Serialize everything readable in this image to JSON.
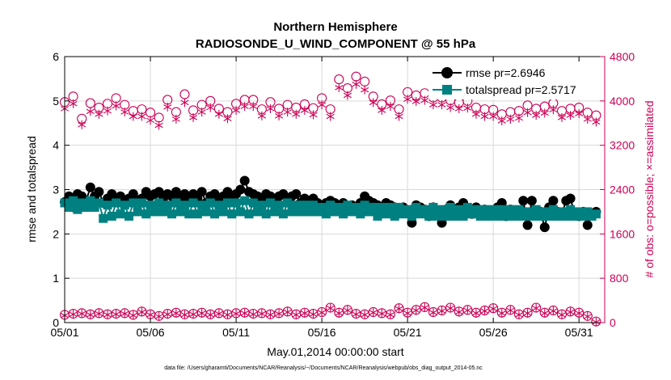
{
  "chart_data": {
    "type": "line",
    "title": "Northern Hemisphere",
    "subtitle": "RADIOSONDE_U_WIND_COMPONENT @ 55 hPa",
    "xlabel": "May.01,2014 00:00:00 start",
    "ylabel": "rmse and totalspread",
    "y2label": "# of obs: o=possible; ×=assimilated",
    "xlim": [
      0,
      31.5
    ],
    "ylim": [
      0,
      6
    ],
    "y2lim": [
      0,
      4800
    ],
    "x_ticks": [
      0,
      5,
      10,
      15,
      20,
      25,
      30
    ],
    "x_tick_labels": [
      "05/01",
      "05/06",
      "05/11",
      "05/16",
      "05/21",
      "05/26",
      "05/31"
    ],
    "y_ticks": [
      0,
      1,
      2,
      3,
      4,
      5,
      6
    ],
    "y_tick_labels": [
      "0",
      "1",
      "2",
      "3",
      "4",
      "5",
      "6"
    ],
    "y2_ticks": [
      0,
      800,
      1600,
      2400,
      3200,
      4000,
      4800
    ],
    "y2_tick_labels": [
      "0",
      "800",
      "1600",
      "2400",
      "3200",
      "4000",
      "4800"
    ],
    "legend_position": "top-right",
    "colors": {
      "rmse": "#000000",
      "spread": "#008080",
      "obs": "#cc0055"
    },
    "series": [
      {
        "name": "rmse pr=2.6946",
        "axis": "left",
        "marker": "filled-circle",
        "x": [
          0,
          0.25,
          0.5,
          0.75,
          1,
          1.25,
          1.5,
          1.75,
          2,
          2.25,
          2.5,
          2.75,
          3,
          3.25,
          3.5,
          3.75,
          4,
          4.25,
          4.5,
          4.75,
          5,
          5.25,
          5.5,
          5.75,
          6,
          6.25,
          6.5,
          6.75,
          7,
          7.25,
          7.5,
          7.75,
          8,
          8.25,
          8.5,
          8.75,
          9,
          9.25,
          9.5,
          9.75,
          10,
          10.25,
          10.5,
          10.75,
          11,
          11.25,
          11.5,
          11.75,
          12,
          12.25,
          12.5,
          12.75,
          13,
          13.25,
          13.5,
          13.75,
          14,
          14.25,
          14.5,
          14.75,
          15,
          15.25,
          15.5,
          15.75,
          16,
          16.25,
          16.5,
          16.75,
          17,
          17.25,
          17.5,
          17.75,
          18,
          18.25,
          18.5,
          18.75,
          19,
          19.25,
          19.5,
          19.75,
          20,
          20.25,
          20.5,
          20.75,
          21,
          21.25,
          21.5,
          21.75,
          22,
          22.25,
          22.5,
          22.75,
          23,
          23.25,
          23.5,
          23.75,
          24,
          24.25,
          24.5,
          24.75,
          25,
          25.25,
          25.5,
          25.75,
          26,
          26.25,
          26.5,
          26.75,
          27,
          27.25,
          27.5,
          27.75,
          28,
          28.25,
          28.5,
          28.75,
          29,
          29.25,
          29.5,
          29.75,
          30,
          30.25,
          30.5,
          30.75,
          31
        ],
        "values": [
          2.72,
          2.85,
          2.6,
          2.9,
          2.85,
          2.75,
          3.05,
          2.85,
          2.95,
          2.7,
          2.8,
          2.9,
          2.75,
          2.85,
          2.7,
          2.8,
          2.9,
          2.75,
          2.8,
          2.95,
          2.85,
          2.9,
          2.95,
          2.8,
          2.9,
          2.85,
          2.95,
          2.8,
          2.9,
          2.75,
          2.9,
          2.8,
          2.95,
          2.7,
          2.85,
          2.9,
          2.8,
          2.85,
          2.95,
          2.8,
          2.9,
          3.0,
          3.2,
          2.95,
          2.9,
          2.85,
          2.8,
          2.9,
          2.85,
          2.8,
          2.85,
          2.9,
          2.8,
          2.85,
          2.9,
          2.7,
          2.8,
          2.75,
          2.8,
          2.7,
          2.65,
          2.7,
          2.75,
          2.7,
          2.65,
          2.7,
          2.6,
          2.65,
          2.55,
          2.7,
          2.85,
          2.75,
          2.7,
          2.65,
          2.6,
          2.7,
          2.65,
          2.6,
          2.55,
          2.6,
          2.5,
          2.25,
          2.65,
          2.6,
          2.55,
          2.4,
          2.6,
          2.5,
          2.25,
          2.55,
          2.65,
          2.5,
          2.6,
          2.7,
          2.55,
          2.45,
          2.6,
          2.5,
          2.55,
          2.45,
          2.5,
          2.6,
          2.7,
          2.4,
          2.55,
          2.5,
          2.45,
          2.75,
          2.2,
          2.75,
          2.45,
          2.5,
          2.15,
          2.6,
          2.75,
          2.5,
          2.45,
          2.75,
          2.8,
          2.45,
          2.4,
          2.5,
          2.2,
          2.45,
          2.5
        ]
      },
      {
        "name": "totalspread pr=2.5717",
        "axis": "left",
        "marker": "filled-square",
        "x": [
          0,
          0.25,
          0.5,
          0.75,
          1,
          1.25,
          1.5,
          1.75,
          2,
          2.25,
          2.5,
          2.75,
          3,
          3.25,
          3.5,
          3.75,
          4,
          4.25,
          4.5,
          4.75,
          5,
          5.25,
          5.5,
          5.75,
          6,
          6.25,
          6.5,
          6.75,
          7,
          7.25,
          7.5,
          7.75,
          8,
          8.25,
          8.5,
          8.75,
          9,
          9.25,
          9.5,
          9.75,
          10,
          10.25,
          10.5,
          10.75,
          11,
          11.25,
          11.5,
          11.75,
          12,
          12.25,
          12.5,
          12.75,
          13,
          13.25,
          13.5,
          13.75,
          14,
          14.25,
          14.5,
          14.75,
          15,
          15.25,
          15.5,
          15.75,
          16,
          16.25,
          16.5,
          16.75,
          17,
          17.25,
          17.5,
          17.75,
          18,
          18.25,
          18.5,
          18.75,
          19,
          19.25,
          19.5,
          19.75,
          20,
          20.25,
          20.5,
          20.75,
          21,
          21.25,
          21.5,
          21.75,
          22,
          22.25,
          22.5,
          22.75,
          23,
          23.25,
          23.5,
          23.75,
          24,
          24.25,
          24.5,
          24.75,
          25,
          25.25,
          25.5,
          25.75,
          26,
          26.25,
          26.5,
          26.75,
          27,
          27.25,
          27.5,
          27.75,
          28,
          28.25,
          28.5,
          28.75,
          29,
          29.25,
          29.5,
          29.75,
          30,
          30.25,
          30.5,
          30.75,
          31
        ],
        "values": [
          2.7,
          2.6,
          2.75,
          2.55,
          2.7,
          2.6,
          2.75,
          2.6,
          2.7,
          2.35,
          2.65,
          2.4,
          2.7,
          2.45,
          2.65,
          2.4,
          2.7,
          2.5,
          2.7,
          2.45,
          2.65,
          2.5,
          2.7,
          2.5,
          2.65,
          2.45,
          2.7,
          2.5,
          2.65,
          2.45,
          2.7,
          2.45,
          2.65,
          2.5,
          2.7,
          2.45,
          2.65,
          2.5,
          2.7,
          2.45,
          2.7,
          2.5,
          2.75,
          2.45,
          2.7,
          2.5,
          2.65,
          2.45,
          2.7,
          2.5,
          2.65,
          2.45,
          2.7,
          2.5,
          2.65,
          2.5,
          2.65,
          2.5,
          2.65,
          2.5,
          2.6,
          2.45,
          2.65,
          2.5,
          2.6,
          2.45,
          2.65,
          2.5,
          2.6,
          2.45,
          2.65,
          2.5,
          2.6,
          2.4,
          2.6,
          2.45,
          2.6,
          2.4,
          2.6,
          2.45,
          2.55,
          2.4,
          2.6,
          2.45,
          2.55,
          2.4,
          2.6,
          2.4,
          2.55,
          2.4,
          2.6,
          2.4,
          2.55,
          2.4,
          2.6,
          2.45,
          2.55,
          2.4,
          2.55,
          2.4,
          2.55,
          2.4,
          2.55,
          2.4,
          2.55,
          2.4,
          2.55,
          2.4,
          2.5,
          2.4,
          2.55,
          2.4,
          2.5,
          2.4,
          2.55,
          2.4,
          2.5,
          2.4,
          2.55,
          2.4,
          2.5,
          2.4,
          2.5,
          2.4,
          2.45
        ]
      },
      {
        "name": "# of obs possible",
        "axis": "right",
        "marker": "open-circle",
        "x": [
          0,
          0.5,
          1,
          1.5,
          2,
          2.5,
          3,
          3.5,
          4,
          4.5,
          5,
          5.5,
          6,
          6.5,
          7,
          7.5,
          8,
          8.5,
          9,
          9.5,
          10,
          10.5,
          11,
          11.5,
          12,
          12.5,
          13,
          13.5,
          14,
          14.5,
          15,
          15.5,
          16,
          16.5,
          17,
          17.5,
          18,
          18.5,
          19,
          19.5,
          20,
          20.5,
          21,
          21.5,
          22,
          22.5,
          23,
          23.5,
          24,
          24.5,
          25,
          25.5,
          26,
          26.5,
          27,
          27.5,
          28,
          28.5,
          29,
          29.5,
          30,
          30.5,
          31
        ],
        "values": [
          3980,
          4080,
          3680,
          3960,
          3880,
          3950,
          4050,
          3930,
          3820,
          3850,
          3790,
          3700,
          4020,
          3800,
          4120,
          3830,
          3930,
          4000,
          3860,
          3800,
          3950,
          4020,
          4020,
          3850,
          3980,
          3860,
          3930,
          3880,
          3940,
          3870,
          4050,
          3850,
          4390,
          4230,
          4440,
          4350,
          4080,
          3940,
          4010,
          3850,
          4160,
          4100,
          4140,
          4060,
          4060,
          4010,
          3970,
          4000,
          3880,
          3850,
          3840,
          3760,
          3800,
          3820,
          3920,
          3860,
          3900,
          3960,
          3820,
          3860,
          3880,
          3790,
          3740
        ]
      },
      {
        "name": "# of obs assimilated",
        "axis": "right",
        "marker": "asterisk",
        "x": [
          0,
          0.5,
          1,
          1.5,
          2,
          2.5,
          3,
          3.5,
          4,
          4.5,
          5,
          5.5,
          6,
          6.5,
          7,
          7.5,
          8,
          8.5,
          9,
          9.5,
          10,
          10.5,
          11,
          11.5,
          12,
          12.5,
          13,
          13.5,
          14,
          14.5,
          15,
          15.5,
          16,
          16.5,
          17,
          17.5,
          18,
          18.5,
          19,
          19.5,
          20,
          20.5,
          21,
          21.5,
          22,
          22.5,
          23,
          23.5,
          24,
          24.5,
          25,
          25.5,
          26,
          26.5,
          27,
          27.5,
          28,
          28.5,
          29,
          29.5,
          30,
          30.5,
          31
        ],
        "values": [
          3860,
          3950,
          3570,
          3810,
          3760,
          3820,
          3910,
          3800,
          3720,
          3720,
          3650,
          3560,
          3890,
          3670,
          3970,
          3700,
          3800,
          3880,
          3760,
          3680,
          3830,
          3900,
          3900,
          3730,
          3860,
          3730,
          3800,
          3760,
          3830,
          3750,
          3930,
          3720,
          4240,
          4100,
          4300,
          4200,
          3970,
          3830,
          3900,
          3720,
          4030,
          3990,
          4010,
          3930,
          3930,
          3880,
          3860,
          3870,
          3760,
          3720,
          3720,
          3640,
          3670,
          3690,
          3790,
          3740,
          3780,
          3840,
          3700,
          3740,
          3770,
          3670,
          3620
        ]
      },
      {
        "name": "# of obs possible (low)",
        "axis": "right",
        "marker": "open-circle",
        "x": [
          0,
          0.5,
          1,
          1.5,
          2,
          2.5,
          3,
          3.5,
          4,
          4.5,
          5,
          5.5,
          6,
          6.5,
          7,
          7.5,
          8,
          8.5,
          9,
          9.5,
          10,
          10.5,
          11,
          11.5,
          12,
          12.5,
          13,
          13.5,
          14,
          14.5,
          15,
          15.5,
          16,
          16.5,
          17,
          17.5,
          18,
          18.5,
          19,
          19.5,
          20,
          20.5,
          21,
          21.5,
          22,
          22.5,
          23,
          23.5,
          24,
          24.5,
          25,
          25.5,
          26,
          26.5,
          27,
          27.5,
          28,
          28.5,
          29,
          29.5,
          30,
          30.5,
          31
        ],
        "values": [
          140,
          160,
          170,
          150,
          170,
          150,
          160,
          170,
          140,
          200,
          150,
          120,
          160,
          180,
          150,
          160,
          180,
          150,
          170,
          150,
          170,
          180,
          160,
          170,
          150,
          170,
          200,
          150,
          180,
          160,
          190,
          270,
          180,
          230,
          160,
          150,
          190,
          170,
          150,
          260,
          180,
          230,
          280,
          190,
          220,
          270,
          200,
          230,
          180,
          220,
          260,
          180,
          230,
          150,
          180,
          270,
          180,
          220,
          150,
          200,
          180,
          120,
          20
        ]
      },
      {
        "name": "# of obs assimilated (low)",
        "axis": "right",
        "marker": "asterisk",
        "x": [
          0,
          0.5,
          1,
          1.5,
          2,
          2.5,
          3,
          3.5,
          4,
          4.5,
          5,
          5.5,
          6,
          6.5,
          7,
          7.5,
          8,
          8.5,
          9,
          9.5,
          10,
          10.5,
          11,
          11.5,
          12,
          12.5,
          13,
          13.5,
          14,
          14.5,
          15,
          15.5,
          16,
          16.5,
          17,
          17.5,
          18,
          18.5,
          19,
          19.5,
          20,
          20.5,
          21,
          21.5,
          22,
          22.5,
          23,
          23.5,
          24,
          24.5,
          25,
          25.5,
          26,
          26.5,
          27,
          27.5,
          28,
          28.5,
          29,
          29.5,
          30,
          30.5,
          31
        ],
        "values": [
          130,
          150,
          160,
          140,
          160,
          140,
          150,
          160,
          130,
          190,
          140,
          110,
          150,
          170,
          140,
          150,
          170,
          140,
          160,
          140,
          160,
          170,
          150,
          160,
          140,
          160,
          190,
          140,
          170,
          150,
          180,
          260,
          170,
          220,
          150,
          140,
          180,
          160,
          140,
          250,
          170,
          220,
          270,
          180,
          210,
          260,
          190,
          220,
          170,
          210,
          250,
          170,
          220,
          140,
          170,
          260,
          170,
          210,
          140,
          190,
          170,
          110,
          10
        ]
      }
    ],
    "legend_entries": [
      "rmse pr=2.6946",
      "totalspread pr=2.5717"
    ],
    "footnote": "data file: /Users/gharamti/Documents/NCAR/Reanalysis/~/Documents/NCAR/Reanalysis/webpub/obs_diag_output_2014-05.nc"
  }
}
